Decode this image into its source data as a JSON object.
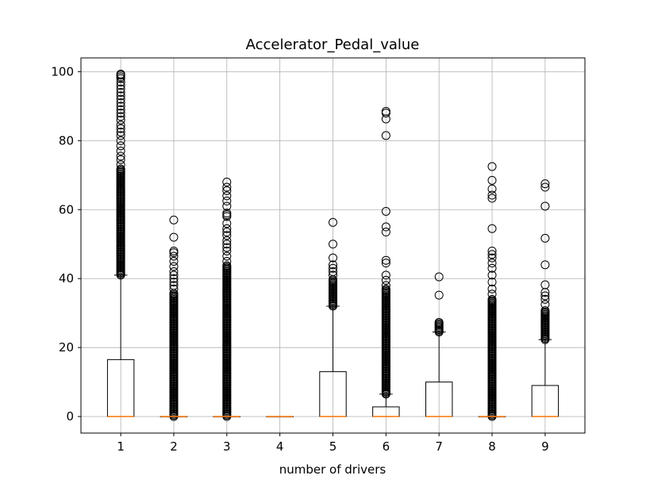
{
  "chart_data": {
    "type": "box",
    "title": "Accelerator_Pedal_value",
    "xlabel": "number of drivers",
    "ylabel": "",
    "ylim": [
      -4.8,
      104
    ],
    "yticks": [
      0,
      20,
      40,
      60,
      80,
      100
    ],
    "grid": true,
    "categories": [
      "1",
      "2",
      "3",
      "4",
      "5",
      "6",
      "7",
      "8",
      "9"
    ],
    "boxes": [
      {
        "label": "1",
        "q1": 0,
        "median": 0,
        "q3": 16.5,
        "whislo": 0,
        "whishi": 41,
        "dense_flier_range": [
          41,
          72
        ],
        "fliers": [
          73,
          74.5,
          75.5,
          77,
          78.5,
          80,
          81.5,
          82.5,
          83.5,
          84.5,
          86,
          87,
          88,
          89,
          90,
          91,
          92,
          93,
          94,
          95,
          96,
          97,
          98,
          98.5,
          99,
          99.3
        ]
      },
      {
        "label": "2",
        "q1": 0,
        "median": 0,
        "q3": 0,
        "whislo": 0,
        "whishi": 0,
        "dense_flier_range": [
          0,
          36
        ],
        "fliers": [
          37,
          38,
          39,
          40,
          41,
          42,
          43.5,
          45,
          46.5,
          47.5,
          48,
          52,
          57
        ]
      },
      {
        "label": "3",
        "q1": 0,
        "median": 0,
        "q3": 0,
        "whislo": 0,
        "whishi": 0,
        "dense_flier_range": [
          0,
          44
        ],
        "fliers": [
          45,
          46.5,
          48,
          49,
          50,
          51,
          52.5,
          53.5,
          54.5,
          56,
          58,
          58.5,
          59,
          61,
          62.5,
          64,
          65.5,
          66.5,
          68
        ]
      },
      {
        "label": "4",
        "q1": 0,
        "median": 0,
        "q3": 0,
        "whislo": 0,
        "whishi": 0,
        "dense_flier_range": null,
        "fliers": []
      },
      {
        "label": "5",
        "q1": 0,
        "median": 0,
        "q3": 13,
        "whislo": 0,
        "whishi": 32,
        "dense_flier_range": [
          32,
          40
        ],
        "fliers": [
          41,
          42,
          43,
          44,
          46,
          50,
          56.3
        ]
      },
      {
        "label": "6",
        "q1": 0,
        "median": 0,
        "q3": 2.8,
        "whislo": 0,
        "whishi": 6.5,
        "dense_flier_range": [
          6.5,
          37
        ],
        "fliers": [
          38,
          39.5,
          41,
          44.5,
          45.3,
          53.5,
          55,
          59.5,
          81.5,
          86.3,
          88,
          88.5
        ]
      },
      {
        "label": "7",
        "q1": 0,
        "median": 0,
        "q3": 10,
        "whislo": 0,
        "whishi": 24.5,
        "dense_flier_range": [
          24.5,
          27.5
        ],
        "fliers": [
          35.2,
          40.5
        ]
      },
      {
        "label": "8",
        "q1": 0,
        "median": 0,
        "q3": 0,
        "whislo": 0,
        "whishi": 0,
        "dense_flier_range": [
          0,
          34
        ],
        "fliers": [
          35.5,
          37,
          39,
          41,
          43,
          44.5,
          46,
          47,
          48,
          54.5,
          63.3,
          64.2,
          66,
          68.5,
          72.5
        ]
      },
      {
        "label": "9",
        "q1": 0,
        "median": 0,
        "q3": 9,
        "whislo": 0,
        "whishi": 22.3,
        "dense_flier_range": [
          22.3,
          31
        ],
        "fliers": [
          32.5,
          34,
          35,
          36,
          38.2,
          44,
          51.7,
          61,
          66.5,
          67.5
        ]
      }
    ],
    "colors": {
      "median": "#ff7f0e",
      "box": "#000000",
      "grid": "#b0b0b0"
    }
  }
}
